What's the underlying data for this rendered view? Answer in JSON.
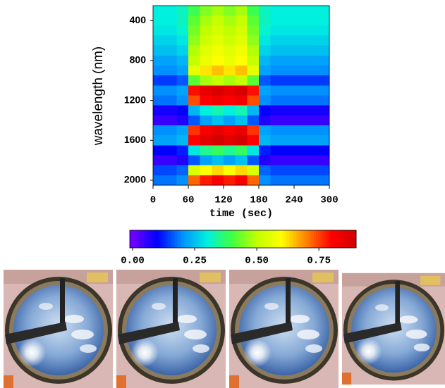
{
  "chart_data": {
    "type": "heatmap",
    "x_label": "time (sec)",
    "y_label": "wavelength (nm)",
    "x": [
      10,
      30,
      50,
      70,
      90,
      110,
      130,
      150,
      170,
      190,
      210,
      230,
      250,
      270,
      290
    ],
    "y": [
      300,
      400,
      500,
      600,
      700,
      800,
      900,
      1000,
      1100,
      1200,
      1300,
      1400,
      1500,
      1600,
      1700,
      1800,
      1900,
      2000
    ],
    "z": [
      [
        0.3,
        0.3,
        0.32,
        0.39,
        0.45,
        0.48,
        0.45,
        0.48,
        0.39,
        0.32,
        0.3,
        0.3,
        0.3,
        0.3,
        0.3
      ],
      [
        0.3,
        0.3,
        0.32,
        0.42,
        0.48,
        0.51,
        0.48,
        0.51,
        0.42,
        0.32,
        0.3,
        0.3,
        0.3,
        0.3,
        0.3
      ],
      [
        0.29,
        0.29,
        0.31,
        0.44,
        0.5,
        0.53,
        0.5,
        0.53,
        0.44,
        0.31,
        0.29,
        0.29,
        0.29,
        0.29,
        0.29
      ],
      [
        0.27,
        0.27,
        0.29,
        0.46,
        0.52,
        0.55,
        0.52,
        0.55,
        0.46,
        0.29,
        0.27,
        0.27,
        0.27,
        0.27,
        0.27
      ],
      [
        0.25,
        0.25,
        0.27,
        0.49,
        0.55,
        0.58,
        0.55,
        0.58,
        0.49,
        0.27,
        0.25,
        0.25,
        0.25,
        0.25,
        0.25
      ],
      [
        0.22,
        0.22,
        0.24,
        0.51,
        0.57,
        0.6,
        0.57,
        0.6,
        0.51,
        0.24,
        0.22,
        0.22,
        0.22,
        0.22,
        0.22
      ],
      [
        0.2,
        0.2,
        0.22,
        0.56,
        0.62,
        0.65,
        0.62,
        0.65,
        0.56,
        0.22,
        0.2,
        0.2,
        0.2,
        0.2,
        0.2
      ],
      [
        0.14,
        0.14,
        0.16,
        0.42,
        0.48,
        0.51,
        0.48,
        0.51,
        0.42,
        0.16,
        0.14,
        0.14,
        0.14,
        0.14,
        0.14
      ],
      [
        0.2,
        0.2,
        0.22,
        0.79,
        0.85,
        0.88,
        0.85,
        0.88,
        0.79,
        0.22,
        0.2,
        0.2,
        0.2,
        0.2,
        0.2
      ],
      [
        0.18,
        0.18,
        0.2,
        0.74,
        0.8,
        0.83,
        0.8,
        0.83,
        0.74,
        0.2,
        0.18,
        0.18,
        0.18,
        0.18,
        0.18
      ],
      [
        0.08,
        0.08,
        0.1,
        0.24,
        0.3,
        0.33,
        0.3,
        0.33,
        0.24,
        0.1,
        0.08,
        0.08,
        0.08,
        0.08,
        0.08
      ],
      [
        0.05,
        0.05,
        0.07,
        0.16,
        0.22,
        0.25,
        0.22,
        0.25,
        0.16,
        0.07,
        0.05,
        0.05,
        0.05,
        0.05,
        0.05
      ],
      [
        0.2,
        0.2,
        0.22,
        0.76,
        0.82,
        0.85,
        0.82,
        0.85,
        0.76,
        0.22,
        0.2,
        0.2,
        0.2,
        0.2,
        0.2
      ],
      [
        0.22,
        0.22,
        0.24,
        0.8,
        0.86,
        0.89,
        0.86,
        0.89,
        0.8,
        0.24,
        0.22,
        0.22,
        0.22,
        0.22,
        0.22
      ],
      [
        0.1,
        0.1,
        0.12,
        0.29,
        0.35,
        0.38,
        0.35,
        0.38,
        0.29,
        0.12,
        0.1,
        0.1,
        0.1,
        0.1,
        0.1
      ],
      [
        0.05,
        0.05,
        0.07,
        0.16,
        0.22,
        0.25,
        0.22,
        0.25,
        0.16,
        0.07,
        0.05,
        0.05,
        0.05,
        0.05,
        0.05
      ],
      [
        0.15,
        0.15,
        0.17,
        0.54,
        0.6,
        0.63,
        0.6,
        0.63,
        0.54,
        0.17,
        0.15,
        0.15,
        0.15,
        0.15,
        0.15
      ],
      [
        0.18,
        0.18,
        0.2,
        0.72,
        0.78,
        0.81,
        0.78,
        0.81,
        0.72,
        0.2,
        0.18,
        0.18,
        0.18,
        0.18,
        0.18
      ]
    ],
    "xlim": [
      0,
      300
    ],
    "xticks": [
      0,
      60,
      120,
      180,
      240,
      300
    ],
    "ylim": [
      2050,
      250
    ],
    "yticks": [
      400,
      800,
      1200,
      1600,
      2000
    ],
    "colormap": [
      "#7000ff",
      "#0000ff",
      "#0090ff",
      "#00f0e0",
      "#40ff40",
      "#c0ff00",
      "#ffff00",
      "#ff8000",
      "#ff0000",
      "#d00000"
    ],
    "colorbar": {
      "lim": [
        0,
        0.9
      ],
      "ticks": [
        {
          "value": 0,
          "label": "0.00"
        },
        0.25,
        {
          "value": 0.5,
          "label": "0.50"
        },
        0.75
      ]
    }
  }
}
